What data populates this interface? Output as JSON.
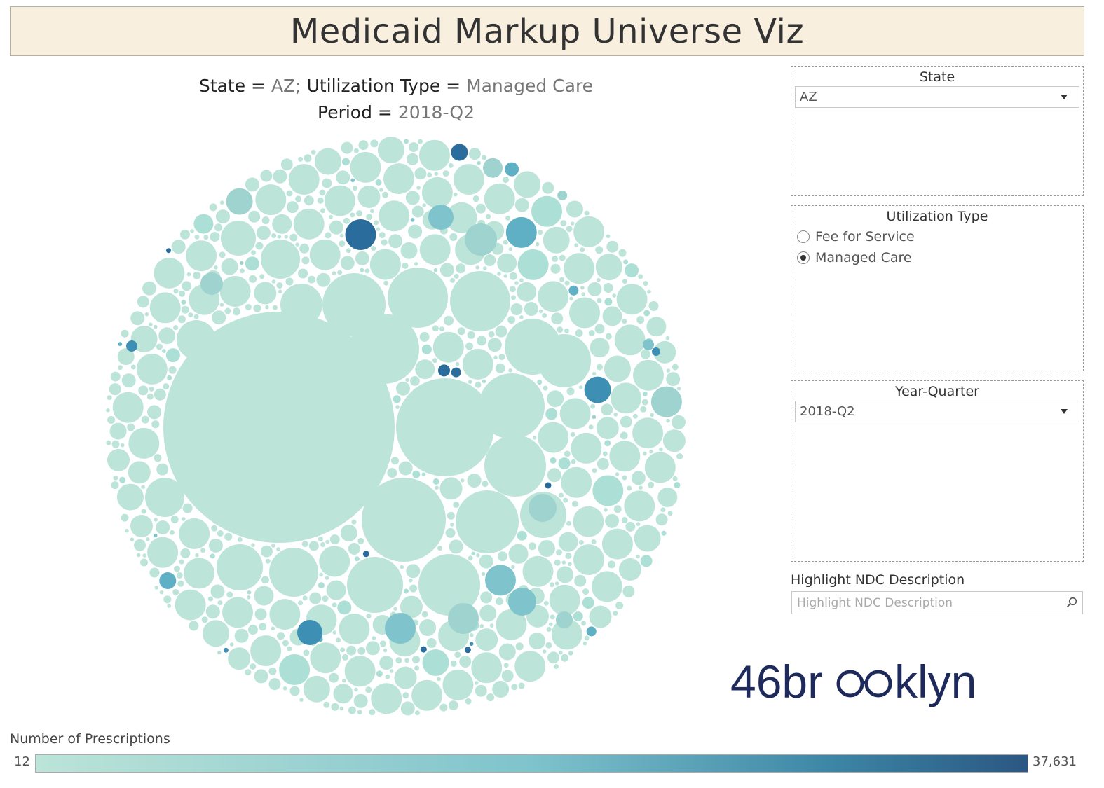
{
  "header": {
    "title": "Medicaid Markup Universe Viz"
  },
  "subtitle": {
    "state_key": "State =",
    "state_value": "AZ;",
    "util_key": "Utilization Type =",
    "util_value": "Managed Care",
    "period_key": "Period =",
    "period_value": "2018-Q2"
  },
  "filters": {
    "state": {
      "label": "State",
      "value": "AZ"
    },
    "utilization": {
      "label": "Utilization Type",
      "options": [
        {
          "label": "Fee for Service",
          "selected": false
        },
        {
          "label": "Managed Care",
          "selected": true
        }
      ]
    },
    "year_quarter": {
      "label": "Year-Quarter",
      "value": "2018-Q2"
    },
    "highlight": {
      "label": "Highlight NDC Description",
      "placeholder": "Highlight NDC Description"
    }
  },
  "logo": {
    "text": "46brooklyn"
  },
  "colors": {
    "bubble_low": "#bce4d8",
    "bubble_high": "#2a5783",
    "logo": "#1d2a5b",
    "banner": "#f8efdf"
  },
  "chart_data": {
    "type": "packed-bubble",
    "measure": "Number of Prescriptions",
    "color_range": [
      12,
      37631
    ],
    "legend": {
      "title": "Number of Prescriptions",
      "min_label": "12",
      "max_label": "37,631"
    }
  }
}
